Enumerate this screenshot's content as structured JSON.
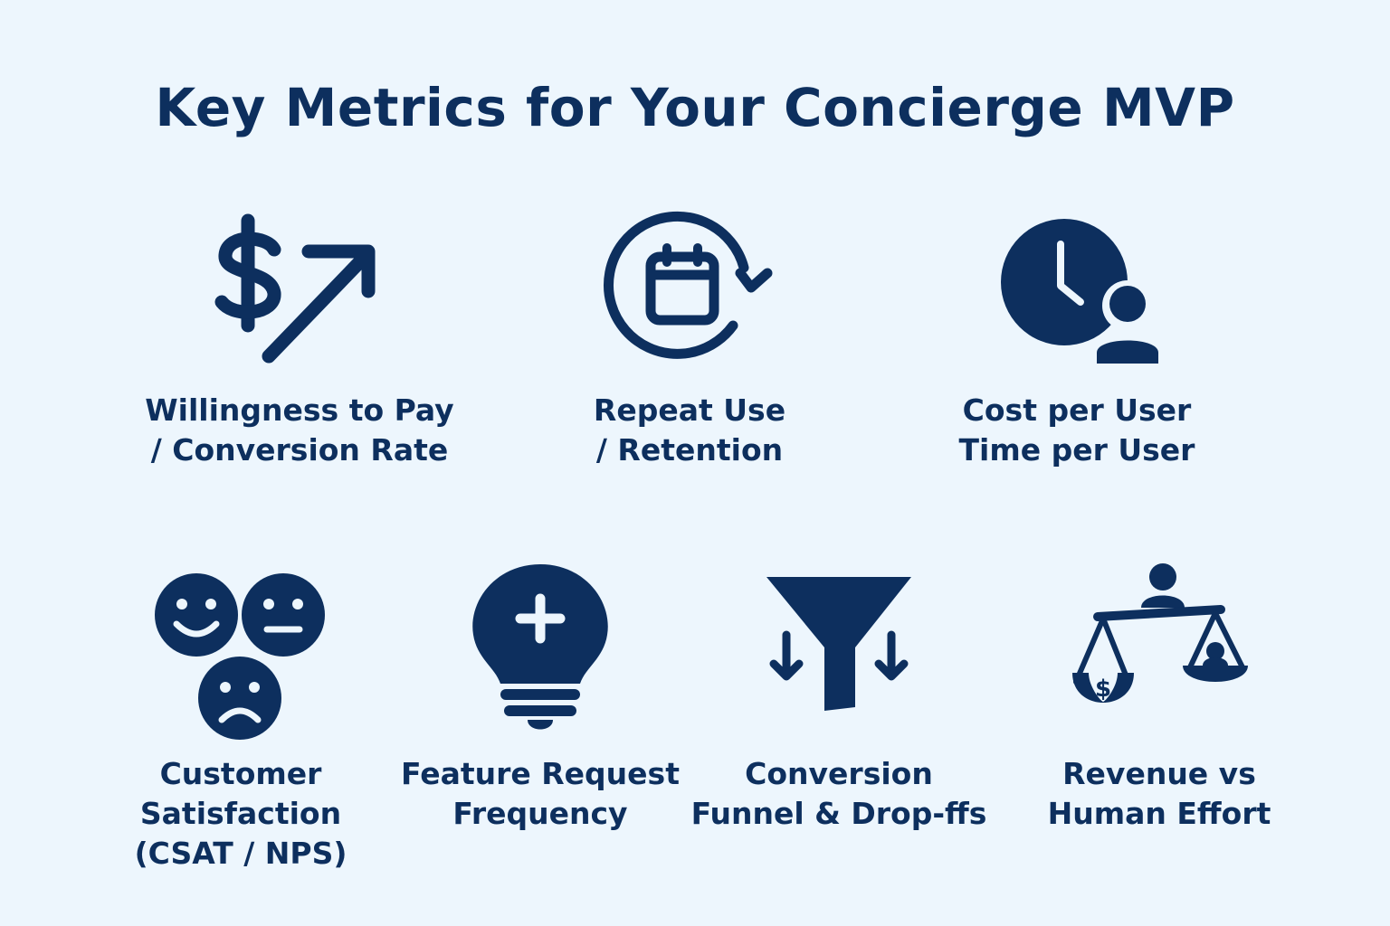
{
  "title": "Key Metrics for Your Concierge MVP",
  "colors": {
    "background": "#edf6fd",
    "primary": "#0d2f5e"
  },
  "metrics": [
    {
      "icon": "dollar-arrow-up-icon",
      "lines": [
        "Willingness to Pay",
        "/ Conversion Rate"
      ]
    },
    {
      "icon": "calendar-repeat-icon",
      "lines": [
        "Repeat Use",
        "/ Retention"
      ]
    },
    {
      "icon": "clock-user-icon",
      "lines": [
        "Cost per User",
        "Time per User"
      ]
    },
    {
      "icon": "faces-satisfaction-icon",
      "lines": [
        "Customer",
        "Satisfaction",
        "(CSAT / NPS)"
      ]
    },
    {
      "icon": "lightbulb-plus-icon",
      "lines": [
        "Feature Request",
        "Frequency"
      ]
    },
    {
      "icon": "funnel-arrows-icon",
      "lines": [
        "Conversion",
        "Funnel & Drop-ffs"
      ]
    },
    {
      "icon": "balance-scale-icon",
      "lines": [
        "Revenue vs",
        "Human Effort"
      ]
    }
  ]
}
